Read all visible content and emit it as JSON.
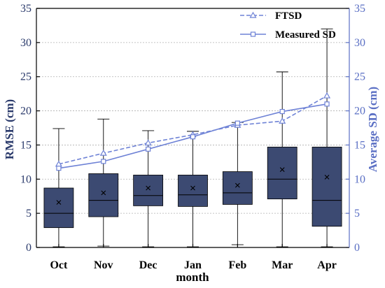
{
  "chart_data": {
    "type": "box+line",
    "categories": [
      "Oct",
      "Nov",
      "Dec",
      "Jan",
      "Feb",
      "Mar",
      "Apr"
    ],
    "xlabel": "month",
    "ylabel_left": "RMSE (cm)",
    "ylabel_right": "Average SD (cm)",
    "ylim_left": [
      0,
      35
    ],
    "ylim_right": [
      0,
      35
    ],
    "yticks": [
      0,
      5,
      10,
      15,
      20,
      25,
      30,
      35
    ],
    "grid": true,
    "legend_position": "top-right",
    "boxes": [
      {
        "category": "Oct",
        "min": 0.1,
        "q1": 2.9,
        "median": 5.0,
        "q3": 8.7,
        "max": 17.4,
        "mean": 6.6
      },
      {
        "category": "Nov",
        "min": 0.2,
        "q1": 4.5,
        "median": 6.9,
        "q3": 10.8,
        "max": 18.8,
        "mean": 8.0
      },
      {
        "category": "Dec",
        "min": 0.1,
        "q1": 6.1,
        "median": 7.6,
        "q3": 10.6,
        "max": 17.1,
        "mean": 8.7
      },
      {
        "category": "Jan",
        "min": 0.1,
        "q1": 6.0,
        "median": 7.7,
        "q3": 10.6,
        "max": 17.0,
        "mean": 8.7
      },
      {
        "category": "Feb",
        "min": 0.4,
        "q1": 6.3,
        "median": 8.0,
        "q3": 11.1,
        "max": 18.3,
        "mean": 9.1
      },
      {
        "category": "Mar",
        "min": 0.1,
        "q1": 7.1,
        "median": 10.0,
        "q3": 14.7,
        "max": 25.7,
        "mean": 11.4
      },
      {
        "category": "Apr",
        "min": 0.1,
        "q1": 3.1,
        "median": 6.9,
        "q3": 14.7,
        "max": 32.0,
        "mean": 10.3
      }
    ],
    "series": [
      {
        "name": "FTSD",
        "style": "dashed-triangle",
        "values": [
          12.2,
          13.8,
          15.3,
          16.5,
          17.9,
          18.5,
          22.2
        ]
      },
      {
        "name": "Measured SD",
        "style": "solid-square",
        "values": [
          11.6,
          12.6,
          14.4,
          16.2,
          18.2,
          19.9,
          21.0
        ]
      }
    ],
    "colors": {
      "box": "#3c4a72",
      "lines": "#6e82d6",
      "left_axis": "#2a3a6b",
      "right_axis": "#5a6fc4"
    }
  }
}
